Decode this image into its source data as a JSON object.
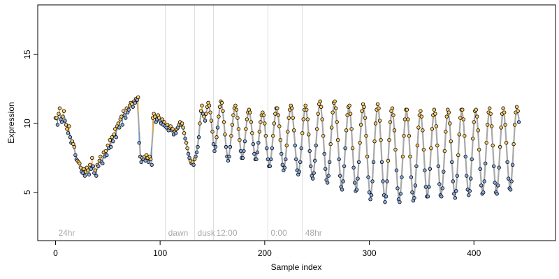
{
  "chart_data": {
    "type": "scatter",
    "title": "",
    "xlabel": "Sample index",
    "ylabel": "Expression",
    "xlim": [
      -17,
      478
    ],
    "ylim": [
      1.5,
      18.6
    ],
    "x_ticks": [
      0,
      100,
      200,
      300,
      400
    ],
    "y_ticks": [
      5,
      10,
      15
    ],
    "grid": false,
    "legend": "none",
    "colors": {
      "trend_line": "#a8a8a8",
      "up_segment": "#f5a623",
      "down_segment": "#5b8fd6",
      "point_fill_high": "#ffcc66",
      "point_fill_low": "#88aadd",
      "point_edge": "#000000",
      "region_divider": "#dddddd"
    },
    "regions": [
      {
        "label": "24hr",
        "start": 0
      },
      {
        "label": "dawn",
        "start": 105
      },
      {
        "label": "dusk",
        "start": 133
      },
      {
        "label": "12:00",
        "start": 151
      },
      {
        "label": "0:00",
        "start": 203
      },
      {
        "label": "48hr",
        "start": 236
      }
    ],
    "series": [
      {
        "values": [
          10.4,
          10.4,
          9.9,
          10.7,
          11.1,
          10.3,
          10.1,
          10.5,
          10.9,
          10.2,
          9.9,
          9.6,
          9.3,
          9.8,
          9.0,
          8.6,
          8.7,
          8.5,
          8.3,
          7.7,
          7.4,
          7.3,
          7.2,
          7.1,
          6.8,
          6.5,
          6.4,
          6.7,
          6.2,
          6.5,
          6.8,
          6.6,
          6.3,
          7.0,
          6.7,
          7.5,
          6.9,
          6.4,
          6.6,
          6.2,
          7.0,
          6.9,
          7.3,
          7.6,
          7.2,
          7.1,
          7.9,
          7.6,
          8.0,
          7.7,
          8.4,
          8.2,
          8.8,
          8.3,
          9.0,
          8.7,
          9.2,
          9.6,
          9.0,
          9.8,
          10.0,
          9.7,
          10.3,
          10.5,
          9.9,
          10.9,
          10.6,
          10.4,
          11.1,
          10.8,
          11.0,
          11.3,
          11.5,
          11.4,
          11.2,
          11.6,
          11.5,
          11.8,
          11.7,
          11.9,
          8.6,
          7.6,
          7.2,
          7.5,
          7.4,
          7.6,
          7.3,
          7.7,
          7.5,
          7.2,
          7.6,
          7.4,
          7.0,
          10.4,
          10.7,
          10.5,
          10.1,
          10.3,
          10.6,
          10.4,
          10.2,
          10.0,
          10.3,
          9.9,
          10.1,
          9.8,
          9.7,
          9.9,
          9.5,
          9.7,
          9.8,
          9.5,
          9.6,
          9.2,
          9.4,
          9.3,
          9.6,
          9.7,
          9.9,
          10.1,
          9.9,
          10.0,
          9.7,
          9.3,
          8.9,
          8.6,
          8.2,
          7.8,
          7.5,
          7.3,
          7.1,
          7.2,
          7.0,
          7.4,
          7.6,
          7.9,
          8.3,
          9.0,
          10.0,
          10.9,
          11.3,
          10.7,
          10.5,
          10.2,
          10.7,
          11.2,
          11.5,
          11.3,
          10.8,
          10.2,
          9.4,
          8.5,
          8.0,
          8.3,
          9.0,
          9.7,
          10.5,
          11.2,
          11.6,
          11.5,
          10.9,
          10.1,
          9.2,
          8.3,
          7.6,
          7.3,
          7.6,
          8.3,
          9.1,
          9.9,
          10.6,
          11.1,
          11.3,
          11.0,
          10.4,
          9.6,
          8.8,
          8.0,
          7.5,
          7.5,
          8.0,
          8.7,
          9.6,
          10.3,
          10.8,
          11.0,
          10.8,
          10.1,
          9.3,
          8.5,
          7.8,
          7.4,
          7.4,
          7.9,
          8.6,
          9.4,
          10.1,
          10.6,
          10.8,
          10.6,
          10.0,
          9.1,
          8.2,
          7.4,
          6.9,
          6.9,
          7.4,
          8.2,
          9.1,
          10.0,
          10.7,
          11.1,
          11.1,
          10.6,
          9.8,
          8.8,
          7.8,
          7.0,
          6.6,
          6.8,
          7.4,
          8.4,
          9.4,
          10.4,
          11.0,
          11.3,
          11.1,
          10.4,
          9.5,
          8.4,
          7.4,
          6.6,
          6.3,
          6.5,
          7.2,
          8.2,
          9.3,
          10.3,
          11.0,
          11.3,
          11.0,
          10.3,
          9.2,
          8.0,
          6.9,
          6.2,
          6.0,
          6.4,
          7.3,
          8.4,
          9.6,
          10.7,
          11.4,
          11.6,
          11.2,
          10.3,
          9.1,
          7.8,
          6.7,
          5.9,
          5.7,
          6.2,
          7.2,
          8.5,
          9.7,
          10.8,
          11.5,
          11.6,
          11.1,
          10.1,
          8.8,
          7.4,
          6.2,
          5.4,
          5.2,
          5.8,
          6.9,
          8.2,
          9.5,
          10.6,
          11.2,
          11.3,
          10.7,
          9.6,
          8.2,
          6.8,
          5.7,
          5.1,
          5.2,
          6.0,
          7.2,
          8.6,
          9.9,
          10.9,
          11.4,
          11.2,
          10.4,
          9.1,
          7.6,
          6.1,
          5.0,
          4.5,
          4.8,
          5.8,
          7.2,
          8.7,
          10.0,
          11.0,
          11.4,
          11.1,
          10.2,
          8.8,
          7.2,
          5.8,
          4.8,
          4.3,
          4.7,
          5.8,
          7.3,
          8.8,
          10.1,
          10.9,
          11.1,
          10.6,
          9.5,
          8.1,
          6.6,
          5.3,
          4.5,
          4.3,
          4.9,
          6.1,
          7.6,
          9.1,
          10.3,
          11.0,
          11.0,
          10.3,
          9.1,
          7.6,
          6.1,
          5.0,
          4.4,
          4.6,
          5.5,
          6.9,
          8.4,
          9.7,
          10.6,
          10.9,
          10.5,
          9.5,
          8.1,
          6.6,
          5.4,
          4.7,
          4.7,
          5.4,
          6.7,
          8.2,
          9.6,
          10.6,
          11.0,
          10.7,
          9.8,
          8.4,
          6.9,
          5.6,
          4.8,
          4.7,
          5.3,
          6.5,
          8.0,
          9.4,
          10.5,
          11.0,
          10.8,
          10.0,
          8.7,
          7.2,
          5.8,
          4.9,
          4.6,
          5.1,
          6.2,
          7.7,
          9.2,
          10.4,
          11.0,
          11.0,
          10.3,
          9.1,
          7.6,
          6.2,
          5.2,
          4.8,
          5.1,
          6.0,
          7.4,
          8.9,
          10.1,
          10.9,
          11.0,
          10.5,
          9.5,
          8.1,
          6.7,
          5.5,
          4.9,
          5.0,
          5.8,
          7.1,
          8.6,
          9.9,
          10.8,
          11.1,
          10.7,
          9.8,
          8.4,
          6.9,
          5.7,
          5.0,
          4.9,
          5.5,
          6.8,
          8.3,
          9.7,
          10.7,
          11.1,
          10.8,
          9.9,
          8.6,
          7.2,
          6.0,
          5.3,
          5.2,
          5.8,
          7.0,
          8.5,
          9.9,
          10.8,
          11.2,
          10.9,
          10.1
        ]
      }
    ]
  }
}
